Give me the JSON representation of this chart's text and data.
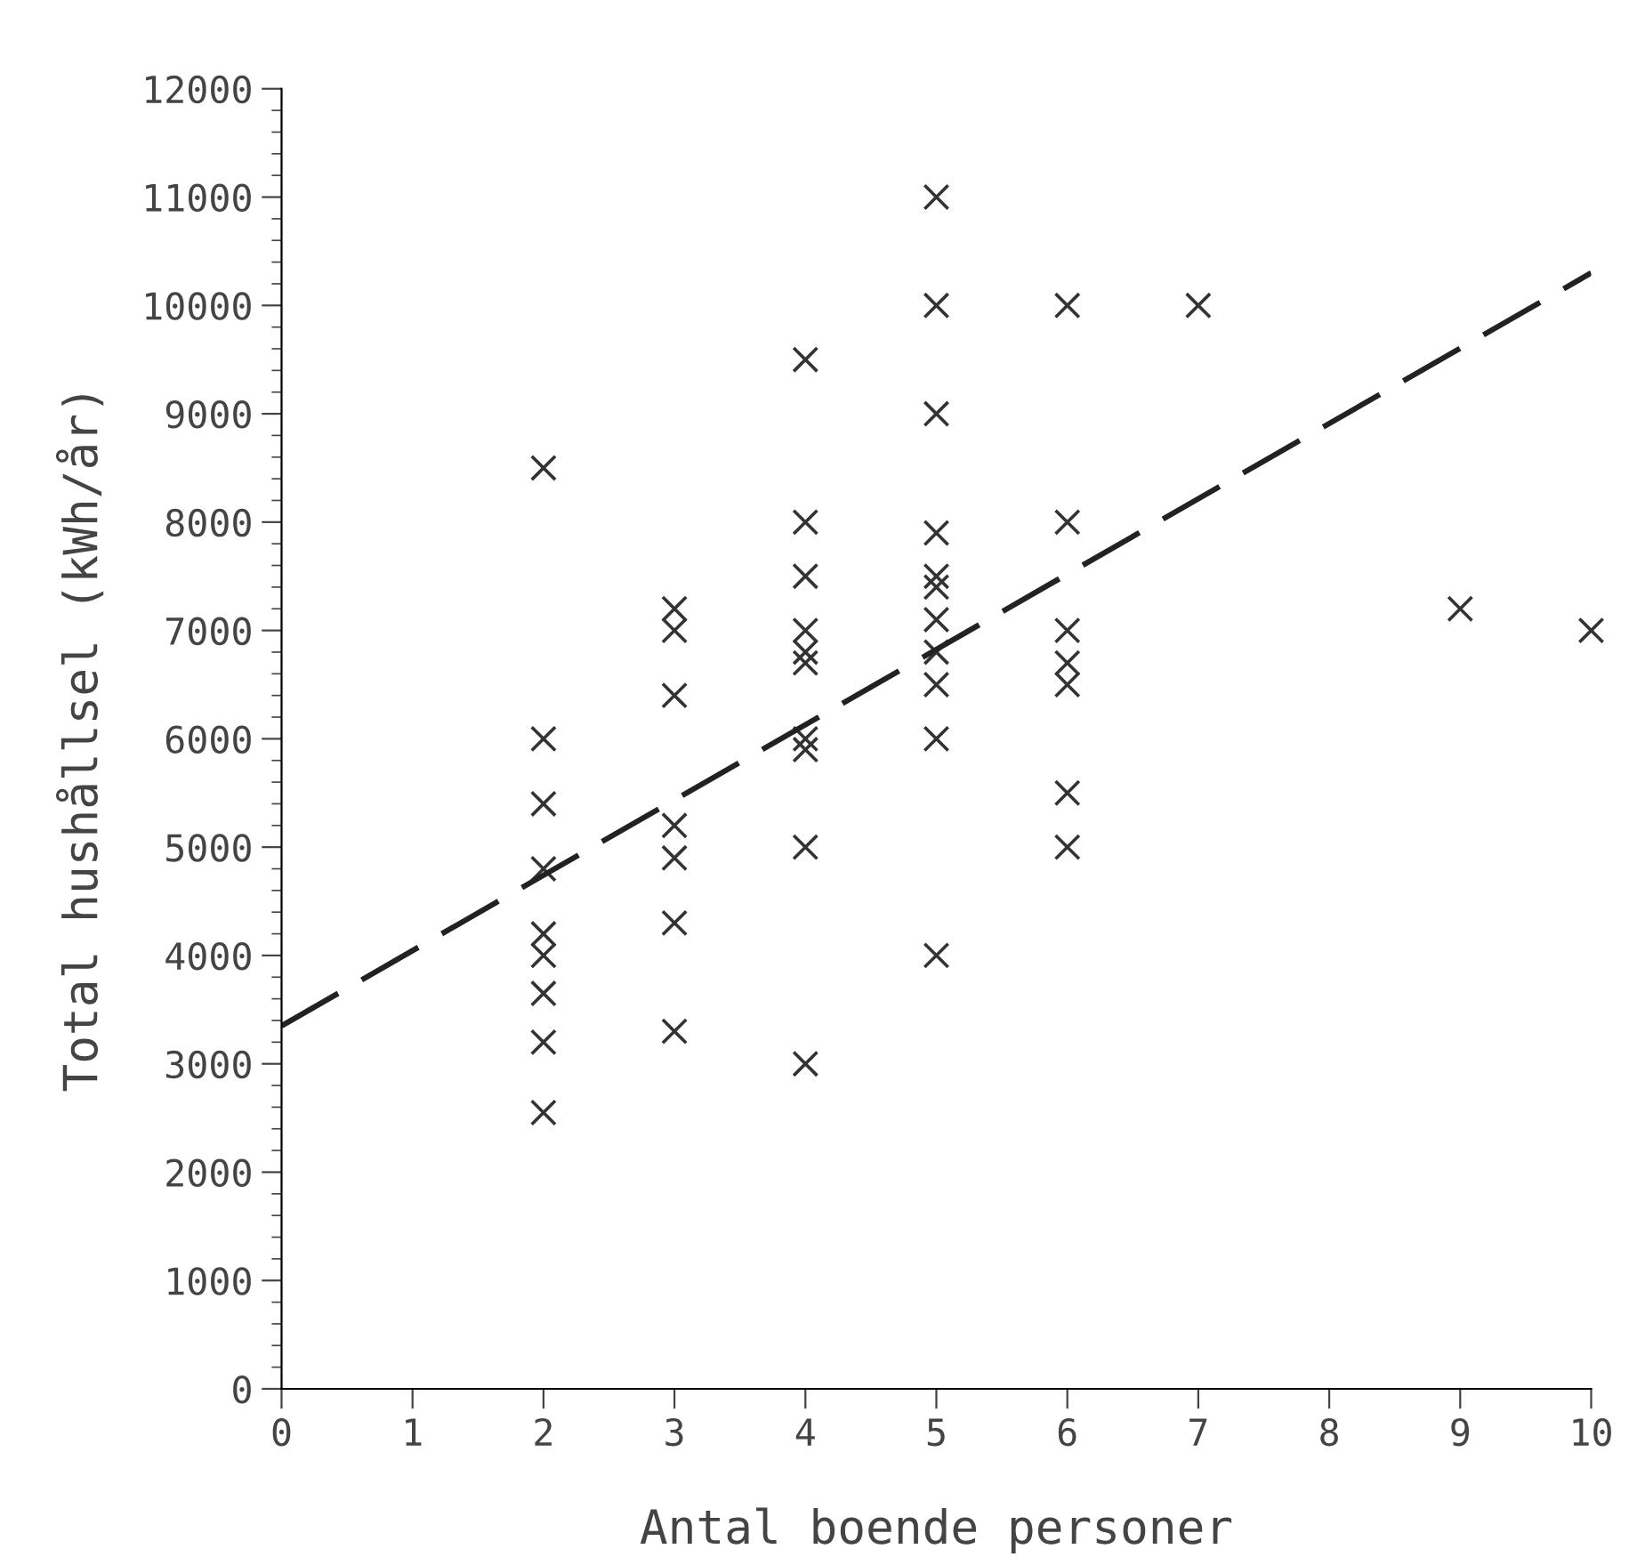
{
  "chart_data": {
    "type": "scatter",
    "xlabel": "Antal boende personer",
    "ylabel": "Total hushållsel (kWh/år)",
    "xlim": [
      0,
      10
    ],
    "ylim": [
      0,
      12000
    ],
    "xticks": [
      0,
      1,
      2,
      3,
      4,
      5,
      6,
      7,
      8,
      9,
      10
    ],
    "yticks": [
      0,
      1000,
      2000,
      3000,
      4000,
      5000,
      6000,
      7000,
      8000,
      9000,
      10000,
      11000,
      12000
    ],
    "grid": false,
    "legend": false,
    "series": [
      {
        "type": "scatter",
        "color": "#333333",
        "marker": "cross",
        "x": [
          2,
          2,
          2,
          2,
          2,
          2,
          2,
          2,
          2,
          3,
          3,
          3,
          3,
          3,
          3,
          3,
          4,
          4,
          4,
          4,
          4,
          4,
          4,
          4,
          4,
          4,
          5,
          5,
          5,
          5,
          5,
          5,
          5,
          5,
          5,
          5,
          5,
          6,
          6,
          6,
          6,
          6,
          6,
          6,
          7,
          9,
          10
        ],
        "values": [
          8500,
          6000,
          5400,
          4800,
          4200,
          4000,
          3650,
          3200,
          2550,
          7200,
          7000,
          6400,
          5200,
          4900,
          4300,
          3300,
          9500,
          8000,
          7500,
          7000,
          6800,
          6700,
          6000,
          5900,
          5000,
          3000,
          11000,
          10000,
          9000,
          7900,
          7500,
          7400,
          7100,
          6800,
          6500,
          6000,
          4000,
          10000,
          8000,
          7000,
          6700,
          6500,
          5500,
          5000,
          10000,
          7200,
          7000
        ]
      },
      {
        "type": "line",
        "color": "#222222",
        "line_style": "dashed",
        "x": [
          0,
          10
        ],
        "values": [
          3350,
          10300
        ]
      }
    ]
  }
}
